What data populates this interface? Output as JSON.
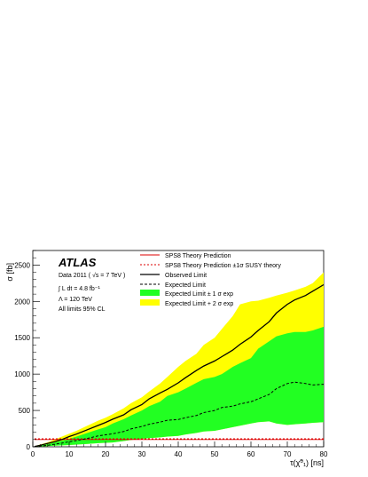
{
  "chart_data": {
    "type": "area",
    "title": "",
    "xlabel": "τ(χ̃⁰₁) [ns]",
    "ylabel": "σ [fb]",
    "xlim": [
      0,
      80
    ],
    "ylim": [
      0,
      2700
    ],
    "x_ticks": [
      0,
      10,
      20,
      30,
      40,
      50,
      60,
      70,
      80
    ],
    "y_ticks": [
      0,
      500,
      1000,
      1500,
      2000,
      2500
    ],
    "grid": false,
    "legend_position": "top-right",
    "annotations": {
      "experiment": "ATLAS",
      "data": "Data 2011 ( √s = 7 TeV )",
      "lumi": "∫ L dt = 4.8 fb⁻¹",
      "lambda": "Λ = 120 TeV",
      "cl": "All limits 95% CL"
    },
    "legend": [
      {
        "key": "theory",
        "label": "SPS8 Theory Prediction"
      },
      {
        "key": "theory_band",
        "label": "SPS8 Theory Prediction ±1σ SUSY theory"
      },
      {
        "key": "observed",
        "label": "Observed Limit"
      },
      {
        "key": "expected",
        "label": "Expected Limit"
      },
      {
        "key": "band1",
        "label": "Expected Limit ± 1 σ exp"
      },
      {
        "key": "band2",
        "label": "Expected Limit + 2 σ exp"
      }
    ],
    "x": [
      0.5,
      2,
      4,
      6,
      8,
      10,
      12,
      15,
      18,
      20,
      22,
      25,
      27,
      30,
      32,
      35,
      37,
      40,
      42,
      45,
      47,
      50,
      52,
      55,
      57,
      60,
      62,
      65,
      67,
      70,
      72,
      75,
      77,
      80
    ],
    "series": [
      {
        "key": "observed",
        "name": "Observed Limit",
        "color": "#000000",
        "values": [
          5,
          20,
          45,
          70,
          100,
          140,
          175,
          235,
          295,
          335,
          380,
          440,
          510,
          580,
          660,
          740,
          790,
          880,
          950,
          1050,
          1110,
          1180,
          1240,
          1330,
          1410,
          1510,
          1600,
          1720,
          1840,
          1960,
          2020,
          2080,
          2140,
          2230
        ]
      },
      {
        "key": "expected",
        "name": "Expected Limit",
        "color": "#000000",
        "values": [
          3,
          10,
          20,
          35,
          50,
          70,
          85,
          115,
          150,
          165,
          180,
          210,
          245,
          280,
          310,
          340,
          365,
          375,
          400,
          430,
          470,
          500,
          540,
          560,
          590,
          620,
          660,
          720,
          800,
          870,
          890,
          870,
          850,
          860
        ]
      },
      {
        "key": "band1",
        "name": "Expected Limit ± 1 σ exp",
        "color": "#22ff22",
        "low": [
          2,
          5,
          10,
          15,
          20,
          25,
          30,
          40,
          50,
          55,
          60,
          80,
          95,
          110,
          120,
          130,
          140,
          150,
          170,
          190,
          210,
          220,
          240,
          270,
          290,
          320,
          340,
          350,
          320,
          300,
          310,
          320,
          330,
          340
        ],
        "high": [
          5,
          15,
          35,
          60,
          85,
          110,
          140,
          190,
          240,
          270,
          320,
          380,
          430,
          500,
          560,
          620,
          700,
          750,
          800,
          880,
          930,
          960,
          1000,
          1100,
          1150,
          1220,
          1350,
          1450,
          1520,
          1560,
          1580,
          1580,
          1600,
          1650
        ]
      },
      {
        "key": "band2",
        "name": "Expected Limit + 2 σ exp",
        "color": "#ffff00",
        "low": [
          2,
          5,
          10,
          15,
          20,
          25,
          30,
          40,
          50,
          55,
          60,
          80,
          95,
          110,
          120,
          130,
          140,
          150,
          170,
          190,
          210,
          220,
          240,
          270,
          290,
          320,
          340,
          350,
          320,
          300,
          310,
          320,
          330,
          340
        ],
        "high": [
          8,
          30,
          60,
          100,
          140,
          180,
          220,
          290,
          360,
          400,
          450,
          530,
          600,
          680,
          760,
          870,
          960,
          1100,
          1180,
          1280,
          1400,
          1500,
          1620,
          1800,
          1960,
          2000,
          2010,
          2050,
          2080,
          2120,
          2150,
          2200,
          2250,
          2400
        ]
      },
      {
        "key": "theory",
        "name": "SPS8 Theory Prediction",
        "color": "#dd0000",
        "values": [
          100,
          100,
          100,
          100,
          100,
          100,
          100,
          100,
          100,
          100,
          100,
          100,
          100,
          100,
          100,
          100,
          100,
          100,
          100,
          100,
          100,
          100,
          100,
          100,
          100,
          100,
          100,
          100,
          100,
          100,
          100,
          100,
          100,
          100
        ]
      },
      {
        "key": "theory_band",
        "name": "SPS8 Theory Prediction ±1σ",
        "color": "#dd0000",
        "values": [
          110,
          110,
          110,
          110,
          110,
          110,
          110,
          110,
          110,
          110,
          110,
          110,
          110,
          110,
          110,
          110,
          110,
          110,
          110,
          110,
          110,
          110,
          110,
          110,
          110,
          110,
          110,
          110,
          110,
          110,
          110,
          110,
          110,
          110
        ]
      }
    ]
  }
}
